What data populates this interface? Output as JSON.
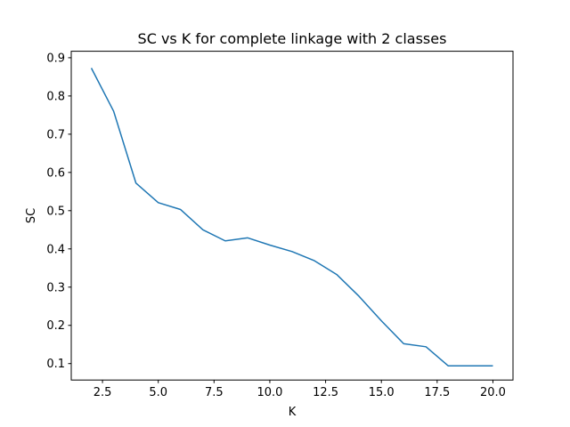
{
  "chart_data": {
    "type": "line",
    "title": "SC vs K for complete linkage with 2 classes",
    "xlabel": "K",
    "ylabel": "SC",
    "xlim": [
      1.1,
      20.9
    ],
    "ylim": [
      0.057,
      0.917
    ],
    "xticks": [
      2.5,
      5.0,
      7.5,
      10.0,
      12.5,
      15.0,
      17.5,
      20.0
    ],
    "xtick_labels": [
      "2.5",
      "5.0",
      "7.5",
      "10.0",
      "12.5",
      "15.0",
      "17.5",
      "20.0"
    ],
    "yticks": [
      0.1,
      0.2,
      0.3,
      0.4,
      0.5,
      0.6,
      0.7,
      0.8,
      0.9
    ],
    "ytick_labels": [
      "0.1",
      "0.2",
      "0.3",
      "0.4",
      "0.5",
      "0.6",
      "0.7",
      "0.8",
      "0.9"
    ],
    "grid": false,
    "series": [
      {
        "color": "#1f77b4",
        "x": [
          2,
          3,
          4,
          5,
          6,
          7,
          8,
          9,
          10,
          11,
          12,
          13,
          14,
          15,
          16,
          17,
          18,
          19,
          20
        ],
        "y": [
          0.873,
          0.76,
          0.572,
          0.521,
          0.503,
          0.45,
          0.421,
          0.429,
          0.41,
          0.393,
          0.369,
          0.333,
          0.276,
          0.212,
          0.152,
          0.144,
          0.094,
          0.094,
          0.094
        ]
      }
    ]
  }
}
